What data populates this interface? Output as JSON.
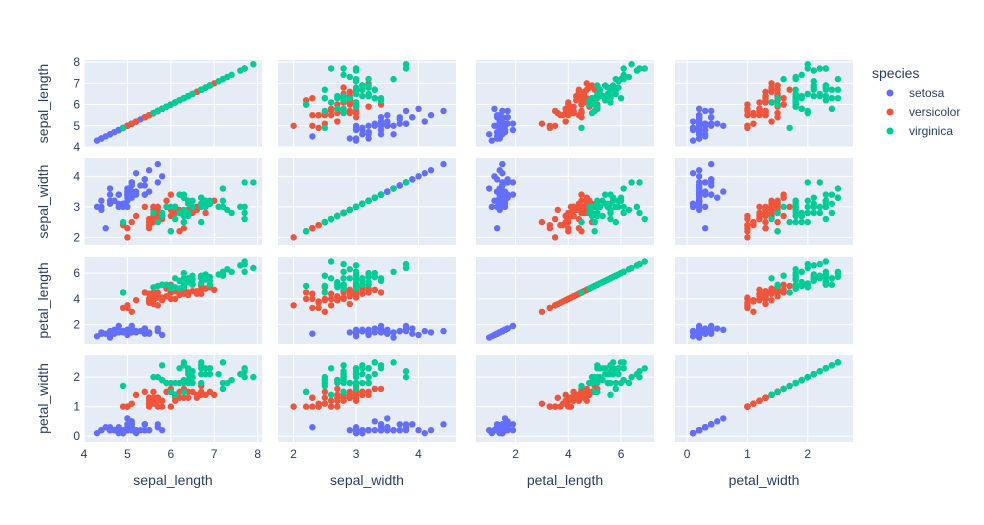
{
  "chart_data": {
    "type": "scatter",
    "subtype": "scatter_matrix",
    "dimensions": [
      "sepal_length",
      "sepal_width",
      "petal_length",
      "petal_width"
    ],
    "axis_ranges": {
      "sepal_length": [
        4.0,
        8.1
      ],
      "sepal_width": [
        1.75,
        4.6
      ],
      "petal_length": [
        0.5,
        7.25
      ],
      "petal_width": [
        -0.2,
        2.75
      ]
    },
    "axis_ticks": {
      "sepal_length": [
        4,
        5,
        6,
        7,
        8
      ],
      "sepal_width": [
        2,
        3,
        4
      ],
      "petal_length": [
        2,
        4,
        6
      ],
      "petal_width": [
        0,
        1,
        2
      ]
    },
    "grid": true,
    "legend": {
      "title": "species",
      "position": "right",
      "entries": [
        "setosa",
        "versicolor",
        "virginica"
      ]
    },
    "colors": {
      "setosa": "#636efa",
      "versicolor": "#EF553B",
      "virginica": "#00cc96",
      "plot_bg": "#E5ECF6",
      "grid": "#ffffff",
      "text": "#2a3f5f"
    },
    "series": [
      {
        "name": "setosa",
        "points": [
          [
            5.1,
            3.5,
            1.4,
            0.2
          ],
          [
            4.9,
            3.0,
            1.4,
            0.2
          ],
          [
            4.7,
            3.2,
            1.3,
            0.2
          ],
          [
            4.6,
            3.1,
            1.5,
            0.2
          ],
          [
            5.0,
            3.6,
            1.4,
            0.2
          ],
          [
            5.4,
            3.9,
            1.7,
            0.4
          ],
          [
            4.6,
            3.4,
            1.4,
            0.3
          ],
          [
            5.0,
            3.4,
            1.5,
            0.2
          ],
          [
            4.4,
            2.9,
            1.4,
            0.2
          ],
          [
            4.9,
            3.1,
            1.5,
            0.1
          ],
          [
            5.4,
            3.7,
            1.5,
            0.2
          ],
          [
            4.8,
            3.4,
            1.6,
            0.2
          ],
          [
            4.8,
            3.0,
            1.4,
            0.1
          ],
          [
            4.3,
            3.0,
            1.1,
            0.1
          ],
          [
            5.8,
            4.0,
            1.2,
            0.2
          ],
          [
            5.7,
            4.4,
            1.5,
            0.4
          ],
          [
            5.4,
            3.9,
            1.3,
            0.4
          ],
          [
            5.1,
            3.5,
            1.4,
            0.3
          ],
          [
            5.7,
            3.8,
            1.7,
            0.3
          ],
          [
            5.1,
            3.8,
            1.5,
            0.3
          ],
          [
            5.4,
            3.4,
            1.7,
            0.2
          ],
          [
            5.1,
            3.7,
            1.5,
            0.4
          ],
          [
            4.6,
            3.6,
            1.0,
            0.2
          ],
          [
            5.1,
            3.3,
            1.7,
            0.5
          ],
          [
            4.8,
            3.4,
            1.9,
            0.2
          ],
          [
            5.0,
            3.0,
            1.6,
            0.2
          ],
          [
            5.0,
            3.4,
            1.6,
            0.4
          ],
          [
            5.2,
            3.5,
            1.5,
            0.2
          ],
          [
            5.2,
            3.4,
            1.4,
            0.2
          ],
          [
            4.7,
            3.2,
            1.6,
            0.2
          ],
          [
            4.8,
            3.1,
            1.6,
            0.2
          ],
          [
            5.4,
            3.4,
            1.5,
            0.4
          ],
          [
            5.2,
            4.1,
            1.5,
            0.1
          ],
          [
            5.5,
            4.2,
            1.4,
            0.2
          ],
          [
            4.9,
            3.1,
            1.5,
            0.1
          ],
          [
            5.0,
            3.2,
            1.2,
            0.2
          ],
          [
            5.5,
            3.5,
            1.3,
            0.2
          ],
          [
            4.9,
            3.1,
            1.5,
            0.1
          ],
          [
            4.4,
            3.0,
            1.3,
            0.2
          ],
          [
            5.1,
            3.4,
            1.5,
            0.2
          ],
          [
            5.0,
            3.5,
            1.3,
            0.3
          ],
          [
            4.5,
            2.3,
            1.3,
            0.3
          ],
          [
            4.4,
            3.2,
            1.3,
            0.2
          ],
          [
            5.0,
            3.5,
            1.6,
            0.6
          ],
          [
            5.1,
            3.8,
            1.9,
            0.4
          ],
          [
            4.8,
            3.0,
            1.4,
            0.3
          ],
          [
            5.1,
            3.8,
            1.6,
            0.2
          ],
          [
            4.6,
            3.2,
            1.4,
            0.2
          ],
          [
            5.3,
            3.7,
            1.5,
            0.2
          ],
          [
            5.0,
            3.3,
            1.4,
            0.2
          ]
        ]
      },
      {
        "name": "versicolor",
        "points": [
          [
            7.0,
            3.2,
            4.7,
            1.4
          ],
          [
            6.4,
            3.2,
            4.5,
            1.5
          ],
          [
            6.9,
            3.1,
            4.9,
            1.5
          ],
          [
            5.5,
            2.3,
            4.0,
            1.3
          ],
          [
            6.5,
            2.8,
            4.6,
            1.5
          ],
          [
            5.7,
            2.8,
            4.5,
            1.3
          ],
          [
            6.3,
            3.3,
            4.7,
            1.6
          ],
          [
            4.9,
            2.4,
            3.3,
            1.0
          ],
          [
            6.6,
            2.9,
            4.6,
            1.3
          ],
          [
            5.2,
            2.7,
            3.9,
            1.4
          ],
          [
            5.0,
            2.0,
            3.5,
            1.0
          ],
          [
            5.9,
            3.0,
            4.2,
            1.5
          ],
          [
            6.0,
            2.2,
            4.0,
            1.0
          ],
          [
            6.1,
            2.9,
            4.7,
            1.4
          ],
          [
            5.6,
            2.9,
            3.6,
            1.3
          ],
          [
            6.7,
            3.1,
            4.4,
            1.4
          ],
          [
            5.6,
            3.0,
            4.5,
            1.5
          ],
          [
            5.8,
            2.7,
            4.1,
            1.0
          ],
          [
            6.2,
            2.2,
            4.5,
            1.5
          ],
          [
            5.6,
            2.5,
            3.9,
            1.1
          ],
          [
            5.9,
            3.2,
            4.8,
            1.8
          ],
          [
            6.1,
            2.8,
            4.0,
            1.3
          ],
          [
            6.3,
            2.5,
            4.9,
            1.5
          ],
          [
            6.1,
            2.8,
            4.7,
            1.2
          ],
          [
            6.4,
            2.9,
            4.3,
            1.3
          ],
          [
            6.6,
            3.0,
            4.4,
            1.4
          ],
          [
            6.8,
            2.8,
            4.8,
            1.4
          ],
          [
            6.7,
            3.0,
            5.0,
            1.7
          ],
          [
            6.0,
            2.9,
            4.5,
            1.5
          ],
          [
            5.7,
            2.6,
            3.5,
            1.0
          ],
          [
            5.5,
            2.4,
            3.8,
            1.1
          ],
          [
            5.5,
            2.4,
            3.7,
            1.0
          ],
          [
            5.8,
            2.7,
            3.9,
            1.2
          ],
          [
            6.0,
            2.7,
            5.1,
            1.6
          ],
          [
            5.4,
            3.0,
            4.5,
            1.5
          ],
          [
            6.0,
            3.4,
            4.5,
            1.6
          ],
          [
            6.7,
            3.1,
            4.7,
            1.5
          ],
          [
            6.3,
            2.3,
            4.4,
            1.3
          ],
          [
            5.6,
            3.0,
            4.1,
            1.3
          ],
          [
            5.5,
            2.5,
            4.0,
            1.3
          ],
          [
            5.5,
            2.6,
            4.4,
            1.2
          ],
          [
            6.1,
            3.0,
            4.6,
            1.4
          ],
          [
            5.8,
            2.6,
            4.0,
            1.2
          ],
          [
            5.0,
            2.3,
            3.3,
            1.0
          ],
          [
            5.6,
            2.7,
            4.2,
            1.3
          ],
          [
            5.7,
            3.0,
            4.2,
            1.2
          ],
          [
            5.7,
            2.9,
            4.2,
            1.3
          ],
          [
            6.2,
            2.9,
            4.3,
            1.3
          ],
          [
            5.1,
            2.5,
            3.0,
            1.1
          ],
          [
            5.7,
            2.8,
            4.1,
            1.3
          ]
        ]
      },
      {
        "name": "virginica",
        "points": [
          [
            6.3,
            3.3,
            6.0,
            2.5
          ],
          [
            5.8,
            2.7,
            5.1,
            1.9
          ],
          [
            7.1,
            3.0,
            5.9,
            2.1
          ],
          [
            6.3,
            2.9,
            5.6,
            1.8
          ],
          [
            6.5,
            3.0,
            5.8,
            2.2
          ],
          [
            7.6,
            3.0,
            6.6,
            2.1
          ],
          [
            4.9,
            2.5,
            4.5,
            1.7
          ],
          [
            7.3,
            2.9,
            6.3,
            1.8
          ],
          [
            6.7,
            2.5,
            5.8,
            1.8
          ],
          [
            7.2,
            3.6,
            6.1,
            2.5
          ],
          [
            6.5,
            3.2,
            5.1,
            2.0
          ],
          [
            6.4,
            2.7,
            5.3,
            1.9
          ],
          [
            6.8,
            3.0,
            5.5,
            2.1
          ],
          [
            5.7,
            2.5,
            5.0,
            2.0
          ],
          [
            5.8,
            2.8,
            5.1,
            2.4
          ],
          [
            6.4,
            3.2,
            5.3,
            2.3
          ],
          [
            6.5,
            3.0,
            5.5,
            1.8
          ],
          [
            7.7,
            3.8,
            6.7,
            2.2
          ],
          [
            7.7,
            2.6,
            6.9,
            2.3
          ],
          [
            6.0,
            2.2,
            5.0,
            1.5
          ],
          [
            6.9,
            3.2,
            5.7,
            2.3
          ],
          [
            5.6,
            2.8,
            4.9,
            2.0
          ],
          [
            7.7,
            2.8,
            6.7,
            2.0
          ],
          [
            6.3,
            2.7,
            4.9,
            1.8
          ],
          [
            6.7,
            3.3,
            5.7,
            2.1
          ],
          [
            7.2,
            3.2,
            6.0,
            1.8
          ],
          [
            6.2,
            2.8,
            4.8,
            1.8
          ],
          [
            6.1,
            3.0,
            4.9,
            1.8
          ],
          [
            6.4,
            2.8,
            5.6,
            2.1
          ],
          [
            7.2,
            3.0,
            5.8,
            1.6
          ],
          [
            7.4,
            2.8,
            6.1,
            1.9
          ],
          [
            7.9,
            3.8,
            6.4,
            2.0
          ],
          [
            6.4,
            2.8,
            5.6,
            2.2
          ],
          [
            6.3,
            2.8,
            5.1,
            1.5
          ],
          [
            6.1,
            2.6,
            5.6,
            1.4
          ],
          [
            7.7,
            3.0,
            6.1,
            2.3
          ],
          [
            6.3,
            3.4,
            5.6,
            2.4
          ],
          [
            6.4,
            3.1,
            5.5,
            1.8
          ],
          [
            6.0,
            3.0,
            4.8,
            1.8
          ],
          [
            6.9,
            3.1,
            5.4,
            2.1
          ],
          [
            6.7,
            3.1,
            5.6,
            2.4
          ],
          [
            6.9,
            3.1,
            5.1,
            2.3
          ],
          [
            5.8,
            2.7,
            5.1,
            1.9
          ],
          [
            6.8,
            3.2,
            5.9,
            2.3
          ],
          [
            6.7,
            3.3,
            5.7,
            2.5
          ],
          [
            6.7,
            3.0,
            5.2,
            2.3
          ],
          [
            6.3,
            2.5,
            5.0,
            1.9
          ],
          [
            6.5,
            3.0,
            5.2,
            2.0
          ],
          [
            6.2,
            3.4,
            5.4,
            2.3
          ],
          [
            5.9,
            3.0,
            5.1,
            1.8
          ]
        ]
      }
    ]
  }
}
